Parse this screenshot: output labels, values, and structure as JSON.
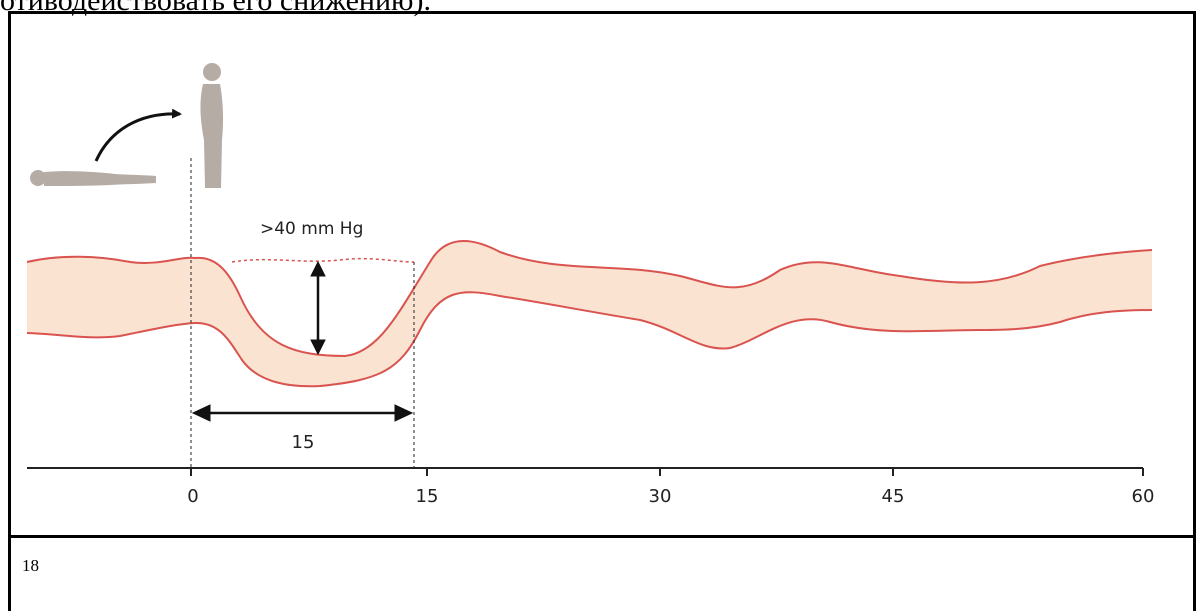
{
  "top_text": "отиводействовать его снижению).",
  "figure": {
    "annotation": ">40 mm Hg",
    "duration_label": "15",
    "x_ticks": [
      "0",
      "15",
      "30",
      "45",
      "60"
    ],
    "colors": {
      "band_fill": "#fbe3d2",
      "band_line": "#d9534f",
      "figure_gray": "#b4aca5",
      "axis": "#222222"
    },
    "icons": [
      "lying-person-icon",
      "curved-arrow-icon",
      "standing-person-icon"
    ]
  },
  "page_number": "18"
}
